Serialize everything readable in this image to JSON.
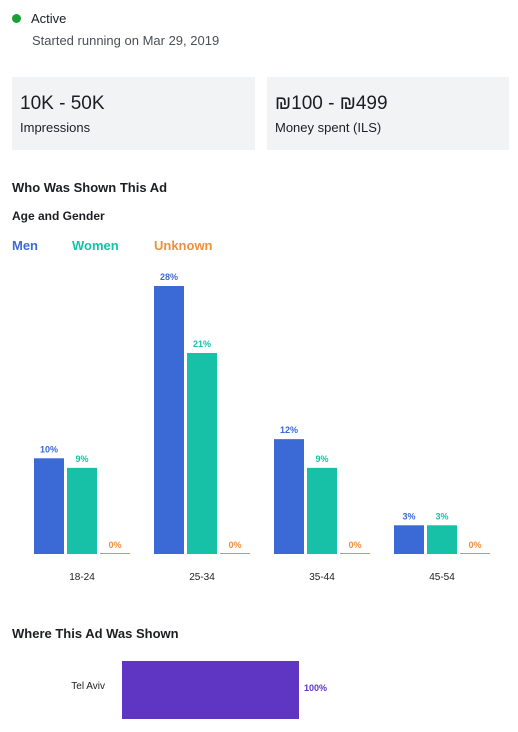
{
  "status": {
    "label": "Active",
    "started": "Started running on Mar 29, 2019"
  },
  "stats": [
    {
      "value": "10K - 50K",
      "label": "Impressions"
    },
    {
      "value": "₪100 - ₪499",
      "label": "Money spent (ILS)"
    }
  ],
  "audience": {
    "title": "Who Was Shown This Ad",
    "subtitle": "Age and Gender"
  },
  "regions_title": "Where This Ad Was Shown",
  "colors": {
    "men": "#3b69d6",
    "women": "#16c1a7",
    "unknown": "#f0903a",
    "region": "#5f35c4",
    "status": "#1a9e3a"
  },
  "chart_data": [
    {
      "type": "bar",
      "title": "",
      "categories": [
        "18-24",
        "25-34",
        "35-44",
        "45-54"
      ],
      "series": [
        {
          "name": "Men",
          "values": [
            10,
            28,
            12,
            3
          ]
        },
        {
          "name": "Women",
          "values": [
            9,
            21,
            9,
            3
          ]
        },
        {
          "name": "Unknown",
          "values": [
            0,
            0,
            0,
            0
          ]
        }
      ],
      "value_suffix": "%",
      "ylim": [
        0,
        28
      ],
      "legend": "top-left",
      "grid": false
    },
    {
      "type": "bar",
      "orientation": "horizontal",
      "categories": [
        "Tel Aviv"
      ],
      "values": [
        100
      ],
      "value_suffix": "%",
      "xlim": [
        0,
        100
      ],
      "grid": false
    }
  ]
}
